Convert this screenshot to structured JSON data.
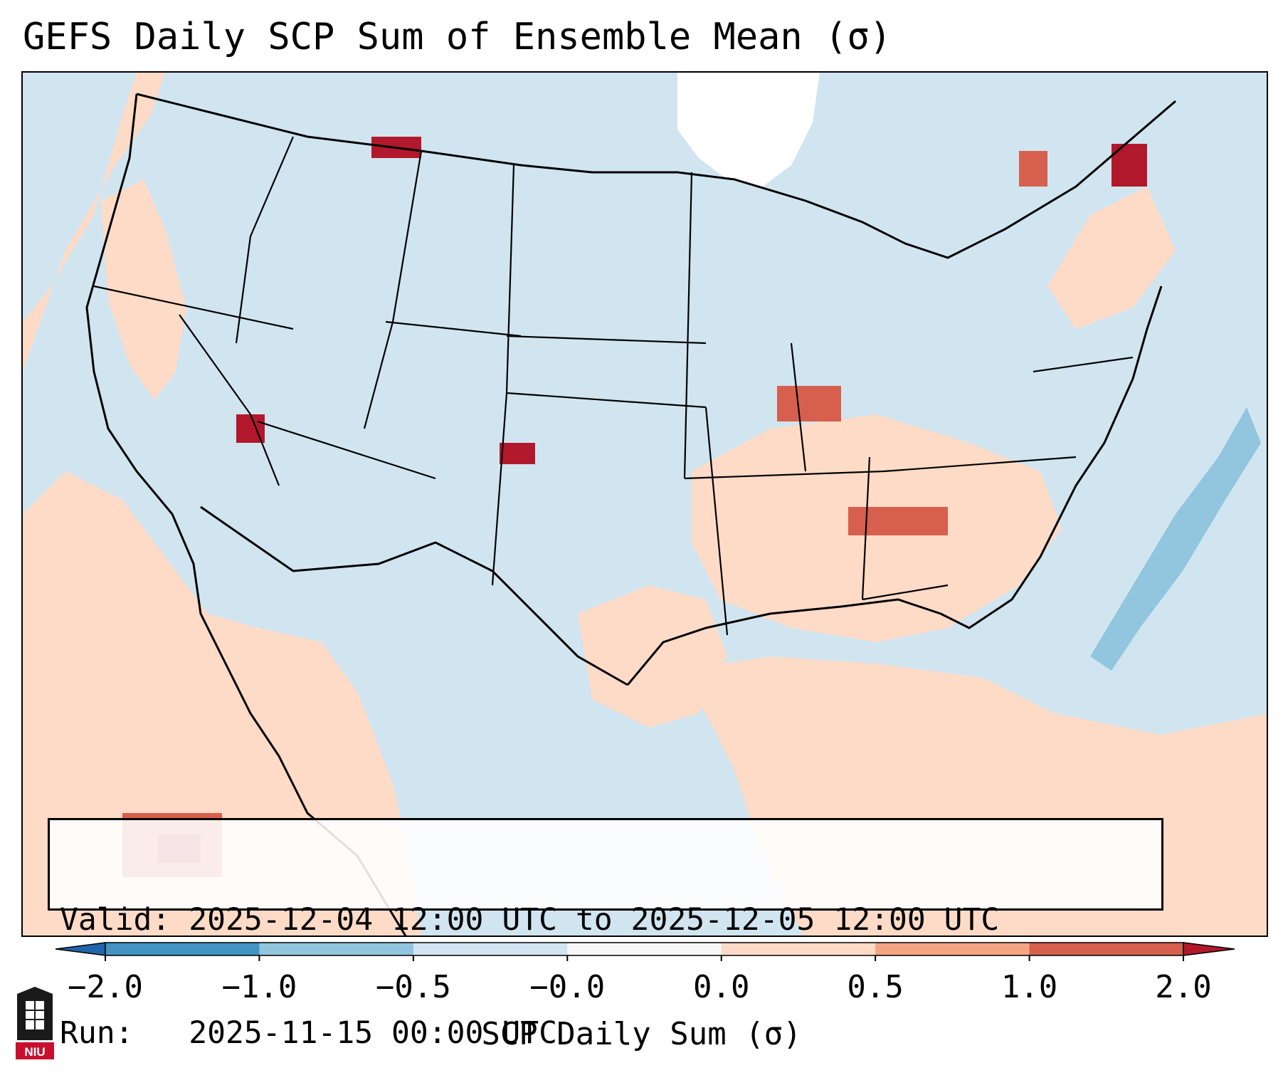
{
  "title": "GEFS Daily SCP Sum of Ensemble Mean (σ)",
  "map": {
    "description_label": "CONUS map",
    "colors": {
      "neutral_low": "#d1e5f0",
      "neutral_high": "#fddbc7",
      "mid_high": "#f4a582",
      "high": "#d6604d",
      "very_high": "#b2182b",
      "mid_low": "#92c5de",
      "low": "#4393c3",
      "very_low": "#2166ac",
      "missing": "#ffffff",
      "border": "#000000"
    }
  },
  "info": {
    "valid_label": "Valid:",
    "valid_value": "2025-12-04 12:00 UTC to 2025-12-05 12:00 UTC",
    "run_label": "Run:",
    "run_value": "2025-11-15 00:00 UTC"
  },
  "colorbar": {
    "label": "SCP Daily Sum (σ)",
    "ticks": [
      "−2.0",
      "−1.0",
      "−0.5",
      "−0.0",
      "0.0",
      "0.5",
      "1.0",
      "2.0"
    ],
    "segment_colors": [
      "#2166ac",
      "#4393c3",
      "#92c5de",
      "#d1e5f0",
      "#f7f7f7",
      "#fddbc7",
      "#f4a582",
      "#d6604d",
      "#b2182b"
    ]
  },
  "logo": {
    "text": "NIU"
  }
}
